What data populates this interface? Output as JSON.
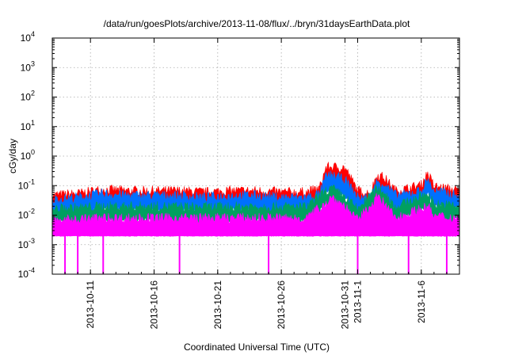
{
  "chart_data": {
    "type": "line",
    "title": "/data/run/goesPlots/archive/2013-11-08/flux/../bryn/31daysEarthData.plot",
    "xlabel": "Coordinated Universal Time (UTC)",
    "ylabel": "cGy/day",
    "yscale": "log",
    "ylim": [
      0.0001,
      10000
    ],
    "xlim": [
      "2013-10-08",
      "2013-11-09"
    ],
    "yticks": [
      {
        "value": 0.0001,
        "base": "10",
        "exp": "-4"
      },
      {
        "value": 0.001,
        "base": "10",
        "exp": "-3"
      },
      {
        "value": 0.01,
        "base": "10",
        "exp": "-2"
      },
      {
        "value": 0.1,
        "base": "10",
        "exp": "-1"
      },
      {
        "value": 1,
        "base": "10",
        "exp": "0"
      },
      {
        "value": 10,
        "base": "10",
        "exp": "1"
      },
      {
        "value": 100,
        "base": "10",
        "exp": "2"
      },
      {
        "value": 1000,
        "base": "10",
        "exp": "3"
      },
      {
        "value": 10000,
        "base": "10",
        "exp": "4"
      }
    ],
    "xticks": [
      {
        "date": "2013-10-11",
        "label": "2013-10-11"
      },
      {
        "date": "2013-10-16",
        "label": "2013-10-16"
      },
      {
        "date": "2013-10-21",
        "label": "2013-10-21"
      },
      {
        "date": "2013-10-26",
        "label": "2013-10-26"
      },
      {
        "date": "2013-10-31",
        "label": "2013-10-31"
      },
      {
        "date": "2013-11-01",
        "label": "2013-11-1"
      },
      {
        "date": "2013-11-06",
        "label": "2013-11-6"
      }
    ],
    "grid": true,
    "series": [
      {
        "color": "#ff0000",
        "points": [
          [
            "2013-10-08",
            0.035
          ],
          [
            "2013-10-10",
            0.04
          ],
          [
            "2013-10-12",
            0.055
          ],
          [
            "2013-10-14",
            0.05
          ],
          [
            "2013-10-16",
            0.05
          ],
          [
            "2013-10-18",
            0.05
          ],
          [
            "2013-10-20",
            0.045
          ],
          [
            "2013-10-22",
            0.05
          ],
          [
            "2013-10-24",
            0.05
          ],
          [
            "2013-10-26",
            0.045
          ],
          [
            "2013-10-28",
            0.045
          ],
          [
            "2013-10-29",
            0.06
          ],
          [
            "2013-10-29T12:00",
            0.3
          ],
          [
            "2013-10-30",
            0.32
          ],
          [
            "2013-10-31",
            0.3
          ],
          [
            "2013-11-01",
            0.05
          ],
          [
            "2013-11-02",
            0.04
          ],
          [
            "2013-11-02T12:00",
            0.17
          ],
          [
            "2013-11-03",
            0.15
          ],
          [
            "2013-11-04",
            0.05
          ],
          [
            "2013-11-05",
            0.06
          ],
          [
            "2013-11-06",
            0.08
          ],
          [
            "2013-11-06T12:00",
            0.2
          ],
          [
            "2013-11-07",
            0.07
          ],
          [
            "2013-11-09",
            0.05
          ]
        ]
      },
      {
        "color": "#0070ff",
        "points": [
          [
            "2013-10-08",
            0.025
          ],
          [
            "2013-10-10",
            0.03
          ],
          [
            "2013-10-12",
            0.04
          ],
          [
            "2013-10-14",
            0.035
          ],
          [
            "2013-10-16",
            0.035
          ],
          [
            "2013-10-18",
            0.035
          ],
          [
            "2013-10-20",
            0.03
          ],
          [
            "2013-10-22",
            0.035
          ],
          [
            "2013-10-24",
            0.035
          ],
          [
            "2013-10-26",
            0.03
          ],
          [
            "2013-10-28",
            0.03
          ],
          [
            "2013-10-29",
            0.04
          ],
          [
            "2013-10-29T12:00",
            0.15
          ],
          [
            "2013-10-30",
            0.17
          ],
          [
            "2013-10-31",
            0.12
          ],
          [
            "2013-11-01",
            0.03
          ],
          [
            "2013-11-02",
            0.03
          ],
          [
            "2013-11-02T12:00",
            0.1
          ],
          [
            "2013-11-03",
            0.09
          ],
          [
            "2013-11-04",
            0.035
          ],
          [
            "2013-11-05",
            0.04
          ],
          [
            "2013-11-06",
            0.05
          ],
          [
            "2013-11-06T12:00",
            0.12
          ],
          [
            "2013-11-07",
            0.05
          ],
          [
            "2013-11-09",
            0.035
          ]
        ]
      },
      {
        "color": "#00a060",
        "points": [
          [
            "2013-10-08",
            0.012
          ],
          [
            "2013-10-12",
            0.015
          ],
          [
            "2013-10-16",
            0.015
          ],
          [
            "2013-10-20",
            0.014
          ],
          [
            "2013-10-24",
            0.015
          ],
          [
            "2013-10-28",
            0.014
          ],
          [
            "2013-10-29T12:00",
            0.05
          ],
          [
            "2013-10-30",
            0.06
          ],
          [
            "2013-10-31",
            0.03
          ],
          [
            "2013-11-01",
            0.012
          ],
          [
            "2013-11-02T12:00",
            0.06
          ],
          [
            "2013-11-03",
            0.05
          ],
          [
            "2013-11-04",
            0.014
          ],
          [
            "2013-11-06T12:00",
            0.04
          ],
          [
            "2013-11-07",
            0.018
          ],
          [
            "2013-11-09",
            0.015
          ]
        ]
      },
      {
        "color": "#ff00ff",
        "points": [
          [
            "2013-10-08",
            0.005
          ],
          [
            "2013-10-12",
            0.006
          ],
          [
            "2013-10-16",
            0.006
          ],
          [
            "2013-10-20",
            0.006
          ],
          [
            "2013-10-24",
            0.006
          ],
          [
            "2013-10-28",
            0.006
          ],
          [
            "2013-10-29T12:00",
            0.02
          ],
          [
            "2013-10-30",
            0.03
          ],
          [
            "2013-10-31",
            0.015
          ],
          [
            "2013-11-01",
            0.005
          ],
          [
            "2013-11-02T12:00",
            0.03
          ],
          [
            "2013-11-03",
            0.02
          ],
          [
            "2013-11-04",
            0.006
          ],
          [
            "2013-11-06T12:00",
            0.015
          ],
          [
            "2013-11-07",
            0.007
          ],
          [
            "2013-11-09",
            0.006
          ]
        ],
        "floor": 0.002,
        "dropouts": [
          "2013-10-09",
          "2013-10-10",
          "2013-10-12",
          "2013-10-18",
          "2013-10-25",
          "2013-11-01",
          "2013-11-05",
          "2013-11-08"
        ]
      }
    ]
  }
}
